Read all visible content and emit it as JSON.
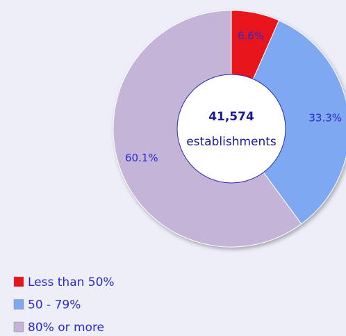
{
  "chart_data": {
    "type": "donut",
    "categories": [
      "Less than 50%",
      "50 - 79%",
      "80% or more"
    ],
    "values": [
      6.6,
      33.3,
      60.1
    ],
    "value_labels": [
      "6.6%",
      "33.3%",
      "60.1%"
    ],
    "colors": [
      "#e8141c",
      "#7ea8f2",
      "#c3b4d8"
    ],
    "center_text": [
      "41,574",
      "establishments"
    ],
    "legend": "bottom-left"
  }
}
